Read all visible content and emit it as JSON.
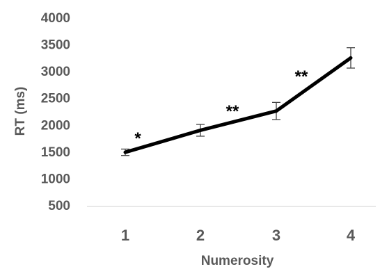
{
  "chart_data": {
    "type": "line",
    "xlabel": "Numerosity",
    "ylabel": "RT (ms)",
    "ylim": [
      500,
      4000
    ],
    "y_ticks": [
      500,
      1000,
      1500,
      2000,
      2500,
      3000,
      3500,
      4000
    ],
    "x": [
      1,
      2,
      3,
      4
    ],
    "x_tick_labels": [
      "1",
      "2",
      "3",
      "4"
    ],
    "series": [
      {
        "values": [
          1510,
          1920,
          2280,
          3270
        ],
        "error": [
          60,
          110,
          160,
          190
        ]
      }
    ],
    "significance": [
      {
        "between": [
          1,
          2
        ],
        "label": "*"
      },
      {
        "between": [
          2,
          3
        ],
        "label": "**"
      },
      {
        "between": [
          3,
          4
        ],
        "label": "**"
      }
    ],
    "grid": false,
    "colors": {
      "line": "#000000",
      "axis": "#d9d9d9",
      "text": "#595959",
      "error": "#404040"
    }
  }
}
